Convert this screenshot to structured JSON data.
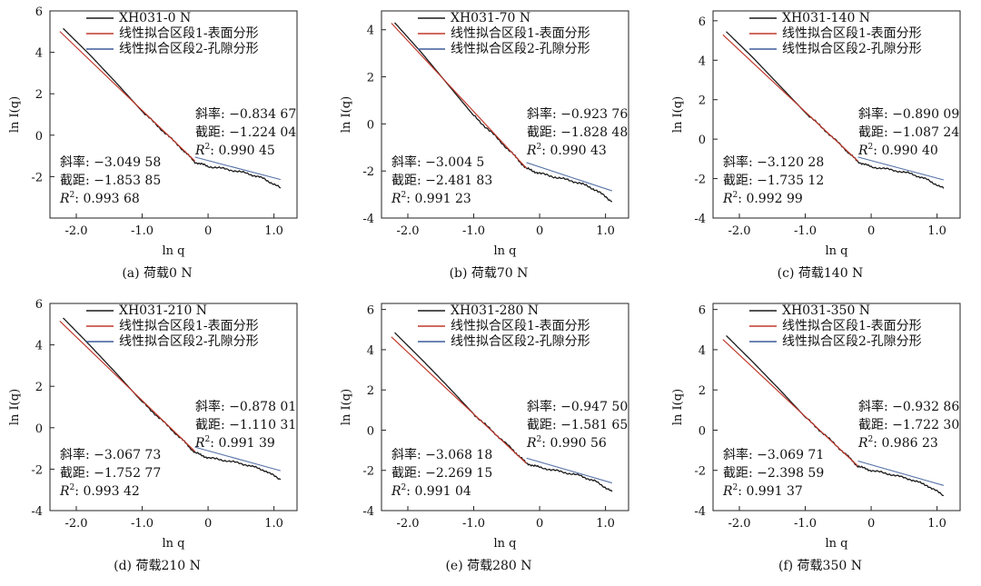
{
  "chart_data": [
    {
      "type": "line",
      "caption": "(a) 荷载0 N",
      "xlabel": "ln q",
      "ylabel": "ln I(q)",
      "xlim": [
        -2.4,
        1.35
      ],
      "ylim": [
        -4,
        6
      ],
      "xticks": [
        "-2.0",
        "-1.0",
        "0",
        "1.0"
      ],
      "xtick_values": [
        -2,
        -1,
        0,
        1
      ],
      "yticks": [
        "-2",
        "0",
        "2",
        "4",
        "6"
      ],
      "ytick_values": [
        -2,
        0,
        2,
        4,
        6
      ],
      "legend": [
        "XH031-0 N",
        "线性拟合区段1-表面分形",
        "线性拟合区段2-孔隙分形"
      ],
      "fit1": {
        "slope_label": "斜率: −3.049 58",
        "intercept_label": "截距: −1.853 85",
        "r2_value": ": 0.993 68",
        "slope": -3.04958,
        "intercept": -1.85385,
        "x_range": [
          -2.25,
          -0.2
        ]
      },
      "fit2": {
        "slope_label": "斜率: −0.834 67",
        "intercept_label": "截距: −1.224 04",
        "r2_value": ": 0.990 45",
        "slope": -0.83467,
        "intercept": -1.22404,
        "x_range": [
          -0.2,
          1.1
        ]
      },
      "data_points": [
        [
          -2.2,
          5.15
        ],
        [
          -1.8,
          3.9
        ],
        [
          -1.4,
          2.55
        ],
        [
          -1.0,
          1.15
        ],
        [
          -0.7,
          0.25
        ],
        [
          -0.4,
          -0.65
        ],
        [
          -0.2,
          -1.3
        ],
        [
          0.0,
          -1.5
        ],
        [
          0.3,
          -1.65
        ],
        [
          0.6,
          -1.85
        ],
        [
          0.85,
          -2.1
        ],
        [
          1.1,
          -2.55
        ]
      ]
    },
    {
      "type": "line",
      "caption": "(b) 荷载70 N",
      "xlabel": "ln q",
      "ylabel": "ln I(q)",
      "xlim": [
        -2.4,
        1.35
      ],
      "ylim": [
        -4,
        4.8
      ],
      "xticks": [
        "-2.0",
        "-1.0",
        "0",
        "1.0"
      ],
      "xtick_values": [
        -2,
        -1,
        0,
        1
      ],
      "yticks": [
        "-4",
        "-2",
        "0",
        "2",
        "4"
      ],
      "ytick_values": [
        -4,
        -2,
        0,
        2,
        4
      ],
      "legend": [
        "XH031-70 N",
        "线性拟合区段1-表面分形",
        "线性拟合区段2-孔隙分形"
      ],
      "fit1": {
        "slope_label": "斜率: −3.004 5",
        "intercept_label": "截距: −2.481 83",
        "r2_value": ": 0.991 23",
        "slope": -3.0045,
        "intercept": -2.48183,
        "x_range": [
          -2.25,
          -0.2
        ]
      },
      "fit2": {
        "slope_label": "斜率: −0.923 76",
        "intercept_label": "截距: −1.828 48",
        "r2_value": ": 0.990 43",
        "slope": -0.92376,
        "intercept": -1.82848,
        "x_range": [
          -0.2,
          1.1
        ]
      },
      "data_points": [
        [
          -2.2,
          4.3
        ],
        [
          -1.8,
          3.05
        ],
        [
          -1.4,
          1.7
        ],
        [
          -1.0,
          0.35
        ],
        [
          -0.7,
          -0.45
        ],
        [
          -0.4,
          -1.3
        ],
        [
          -0.2,
          -1.9
        ],
        [
          0.0,
          -2.1
        ],
        [
          0.3,
          -2.3
        ],
        [
          0.6,
          -2.5
        ],
        [
          0.85,
          -2.8
        ],
        [
          1.1,
          -3.3
        ]
      ]
    },
    {
      "type": "line",
      "caption": "(c) 荷载140 N",
      "xlabel": "ln q",
      "ylabel": "ln I(q)",
      "xlim": [
        -2.4,
        1.35
      ],
      "ylim": [
        -4,
        6.5
      ],
      "xticks": [
        "-2.0",
        "-1.0",
        "0",
        "1.0"
      ],
      "xtick_values": [
        -2,
        -1,
        0,
        1
      ],
      "yticks": [
        "-4",
        "-2",
        "0",
        "2",
        "4",
        "6"
      ],
      "ytick_values": [
        -4,
        -2,
        0,
        2,
        4,
        6
      ],
      "legend": [
        "XH031-140 N",
        "线性拟合区段1-表面分形",
        "线性拟合区段2-孔隙分形"
      ],
      "fit1": {
        "slope_label": "斜率: −3.120 28",
        "intercept_label": "截距: −1.735 12",
        "r2_value": ": 0.992 99",
        "slope": -3.12028,
        "intercept": -1.73512,
        "x_range": [
          -2.25,
          -0.2
        ]
      },
      "fit2": {
        "slope_label": "斜率: −0.890 09",
        "intercept_label": "截距: −1.087 24",
        "r2_value": ": 0.990 40",
        "slope": -0.89009,
        "intercept": -1.08724,
        "x_range": [
          -0.2,
          1.1
        ]
      },
      "data_points": [
        [
          -2.2,
          5.45
        ],
        [
          -1.8,
          4.15
        ],
        [
          -1.4,
          2.75
        ],
        [
          -1.0,
          1.35
        ],
        [
          -0.7,
          0.45
        ],
        [
          -0.4,
          -0.5
        ],
        [
          -0.2,
          -1.15
        ],
        [
          0.0,
          -1.4
        ],
        [
          0.3,
          -1.55
        ],
        [
          0.6,
          -1.75
        ],
        [
          0.85,
          -2.05
        ],
        [
          1.1,
          -2.5
        ]
      ]
    },
    {
      "type": "line",
      "caption": "(d) 荷载210 N",
      "xlabel": "ln q",
      "ylabel": "ln I(q)",
      "xlim": [
        -2.4,
        1.35
      ],
      "ylim": [
        -4,
        6
      ],
      "xticks": [
        "-2.0",
        "-1.0",
        "0",
        "1.0"
      ],
      "xtick_values": [
        -2,
        -1,
        0,
        1
      ],
      "yticks": [
        "-4",
        "-2",
        "0",
        "2",
        "4",
        "6"
      ],
      "ytick_values": [
        -4,
        -2,
        0,
        2,
        4,
        6
      ],
      "legend": [
        "XH031-210 N",
        "线性拟合区段1-表面分形",
        "线性拟合区段2-孔隙分形"
      ],
      "fit1": {
        "slope_label": "斜率: −3.067 73",
        "intercept_label": "截距: −1.752 77",
        "r2_value": ": 0.993 42",
        "slope": -3.06773,
        "intercept": -1.75277,
        "x_range": [
          -2.25,
          -0.2
        ]
      },
      "fit2": {
        "slope_label": "斜率: −0.878 01",
        "intercept_label": "截距: −1.110 31",
        "r2_value": ": 0.991 39",
        "slope": -0.87801,
        "intercept": -1.11031,
        "x_range": [
          -0.2,
          1.1
        ]
      },
      "data_points": [
        [
          -2.2,
          5.3
        ],
        [
          -1.8,
          4.0
        ],
        [
          -1.4,
          2.65
        ],
        [
          -1.0,
          1.25
        ],
        [
          -0.7,
          0.35
        ],
        [
          -0.4,
          -0.55
        ],
        [
          -0.2,
          -1.2
        ],
        [
          0.0,
          -1.45
        ],
        [
          0.3,
          -1.6
        ],
        [
          0.6,
          -1.8
        ],
        [
          0.85,
          -2.05
        ],
        [
          1.1,
          -2.5
        ]
      ]
    },
    {
      "type": "line",
      "caption": "(e) 荷载280 N",
      "xlabel": "ln q",
      "ylabel": "ln I(q)",
      "xlim": [
        -2.4,
        1.35
      ],
      "ylim": [
        -4,
        6.3
      ],
      "xticks": [
        "-2.0",
        "-1.0",
        "0",
        "1.0"
      ],
      "xtick_values": [
        -2,
        -1,
        0,
        1
      ],
      "yticks": [
        "-4",
        "-2",
        "0",
        "2",
        "4",
        "6"
      ],
      "ytick_values": [
        -4,
        -2,
        0,
        2,
        4,
        6
      ],
      "legend": [
        "XH031-280 N",
        "线性拟合区段1-表面分形",
        "线性拟合区段2-孔隙分形"
      ],
      "fit1": {
        "slope_label": "斜率: −3.068 18",
        "intercept_label": "截距: −2.269 15",
        "r2_value": ": 0.991 04",
        "slope": -3.06818,
        "intercept": -2.26915,
        "x_range": [
          -2.25,
          -0.2
        ]
      },
      "fit2": {
        "slope_label": "斜率: −0.947 50",
        "intercept_label": "截距: −1.581 65",
        "r2_value": ": 0.990 56",
        "slope": -0.9475,
        "intercept": -1.58165,
        "x_range": [
          -0.2,
          1.1
        ]
      },
      "data_points": [
        [
          -2.2,
          4.85
        ],
        [
          -1.8,
          3.55
        ],
        [
          -1.4,
          2.2
        ],
        [
          -1.0,
          0.8
        ],
        [
          -0.7,
          -0.1
        ],
        [
          -0.4,
          -1.0
        ],
        [
          -0.2,
          -1.65
        ],
        [
          0.0,
          -1.85
        ],
        [
          0.3,
          -2.05
        ],
        [
          0.6,
          -2.25
        ],
        [
          0.85,
          -2.55
        ],
        [
          1.1,
          -3.05
        ]
      ]
    },
    {
      "type": "line",
      "caption": "(f) 荷载350 N",
      "xlabel": "ln q",
      "ylabel": "ln I(q)",
      "xlim": [
        -2.4,
        1.35
      ],
      "ylim": [
        -4,
        6.3
      ],
      "xticks": [
        "-2.0",
        "-1.0",
        "0",
        "1.0"
      ],
      "xtick_values": [
        -2,
        -1,
        0,
        1
      ],
      "yticks": [
        "-4",
        "-2",
        "0",
        "2",
        "4",
        "6"
      ],
      "ytick_values": [
        -4,
        -2,
        0,
        2,
        4,
        6
      ],
      "legend": [
        "XH031-350 N",
        "线性拟合区段1-表面分形",
        "线性拟合区段2-孔隙分形"
      ],
      "fit1": {
        "slope_label": "斜率: −3.069 71",
        "intercept_label": "截距: −2.398 59",
        "r2_value": ": 0.991 37",
        "slope": -3.06971,
        "intercept": -2.39859,
        "x_range": [
          -2.25,
          -0.2
        ]
      },
      "fit2": {
        "slope_label": "斜率: −0.932 86",
        "intercept_label": "截距: −1.722 30",
        "r2_value": ": 0.986 23",
        "slope": -0.93286,
        "intercept": -1.7223,
        "x_range": [
          -0.2,
          1.1
        ]
      },
      "data_points": [
        [
          -2.2,
          4.7
        ],
        [
          -1.8,
          3.4
        ],
        [
          -1.4,
          2.05
        ],
        [
          -1.0,
          0.65
        ],
        [
          -0.7,
          -0.25
        ],
        [
          -0.4,
          -1.15
        ],
        [
          -0.2,
          -1.8
        ],
        [
          0.0,
          -2.0
        ],
        [
          0.3,
          -2.2
        ],
        [
          0.6,
          -2.45
        ],
        [
          0.85,
          -2.75
        ],
        [
          1.1,
          -3.25
        ]
      ]
    }
  ],
  "colors": {
    "data_line": "#1a1a1a",
    "fit1_line": "#c0392b",
    "fit2_line": "#3b5b9a",
    "axis": "#222222"
  }
}
